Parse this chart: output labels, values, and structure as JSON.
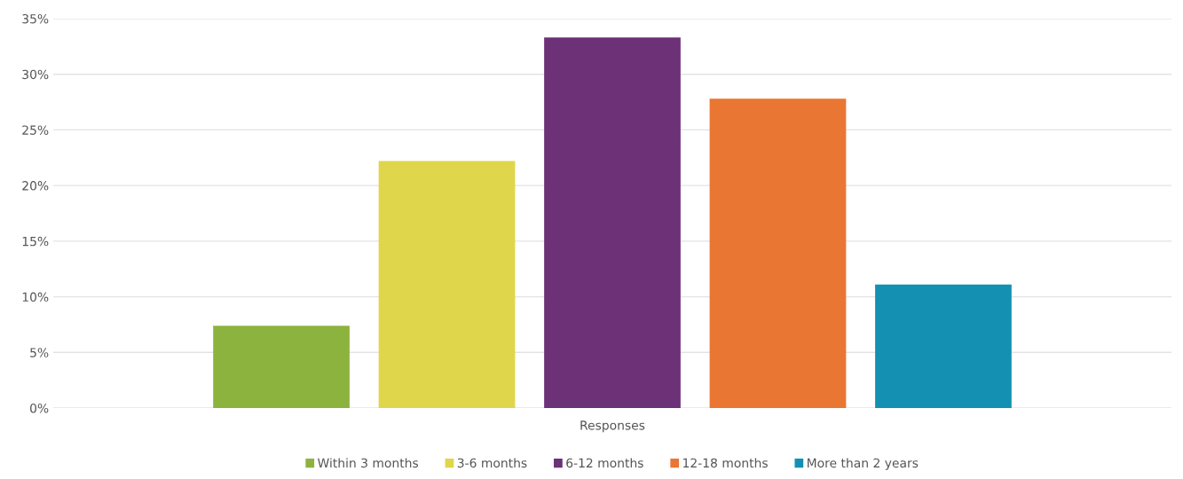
{
  "chart_data": {
    "type": "bar",
    "xlabel": null,
    "categories": [
      "Responses"
    ],
    "series": [
      {
        "name": "Within 3 months",
        "color": "#8db33f",
        "values": [
          7.4
        ]
      },
      {
        "name": "3-6 months",
        "color": "#e0d64b",
        "values": [
          22.2
        ]
      },
      {
        "name": "6-12 months",
        "color": "#6d3178",
        "values": [
          33.3
        ]
      },
      {
        "name": "12-18 months",
        "color": "#ea7633",
        "values": [
          27.8
        ]
      },
      {
        "name": "More than 2 years",
        "color": "#1390b2",
        "values": [
          11.1
        ]
      }
    ],
    "ylim": [
      0,
      35
    ],
    "yticks": [
      {
        "value": 0,
        "label": "0%"
      },
      {
        "value": 5,
        "label": "5%"
      },
      {
        "value": 10,
        "label": "10%"
      },
      {
        "value": 15,
        "label": "15%"
      },
      {
        "value": 20,
        "label": "20%"
      },
      {
        "value": 25,
        "label": "25%"
      },
      {
        "value": 30,
        "label": "30%"
      },
      {
        "value": 35,
        "label": "35%"
      }
    ],
    "grid": "y",
    "legend": "bottom"
  }
}
